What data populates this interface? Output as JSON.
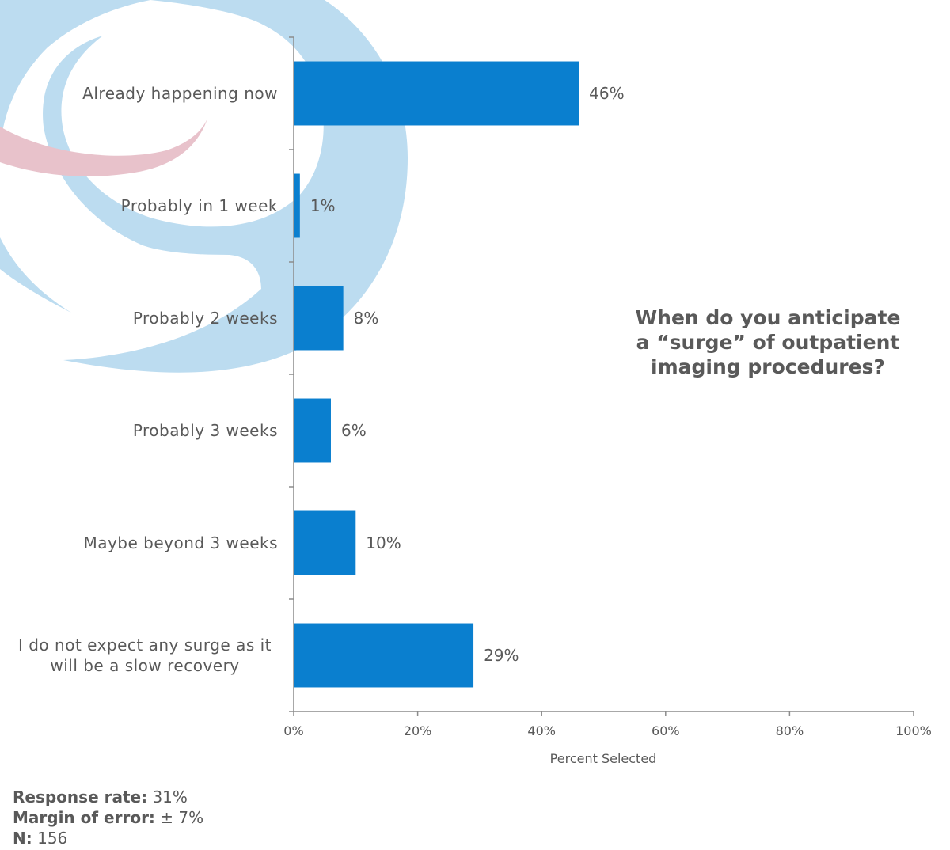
{
  "chart_data": {
    "type": "bar",
    "orientation": "horizontal",
    "categories": [
      [
        "Already happening now"
      ],
      [
        "Probably in 1 week"
      ],
      [
        "Probably 2 weeks"
      ],
      [
        "Probably 3 weeks"
      ],
      [
        "Maybe beyond 3 weeks"
      ],
      [
        "I do not expect any surge as it",
        "will be a slow recovery"
      ]
    ],
    "values": [
      46,
      1,
      8,
      6,
      10,
      29
    ],
    "value_labels": [
      "46%",
      "1%",
      "8%",
      "6%",
      "10%",
      "29%"
    ],
    "xlabel": "Percent Selected",
    "xlim": [
      0,
      100
    ],
    "xticks": [
      0,
      20,
      40,
      60,
      80,
      100
    ],
    "xtick_labels": [
      "0%",
      "20%",
      "40%",
      "60%",
      "80%",
      "100%"
    ],
    "grid": false,
    "bar_color": "#0a7fcf"
  },
  "question": [
    "When do you anticipate",
    "a “surge” of outpatient",
    "imaging procedures?"
  ],
  "footer": {
    "response_rate_label": "Response rate:",
    "response_rate_value": "31%",
    "margin_label": "Margin of error:",
    "margin_value": "± 7%",
    "n_label": "N:",
    "n_value": "156"
  },
  "colors": {
    "text": "#595959",
    "axis": "#8c8c8c",
    "logo_blue": "#bcdcf0",
    "logo_pink": "#e8c2cb"
  }
}
